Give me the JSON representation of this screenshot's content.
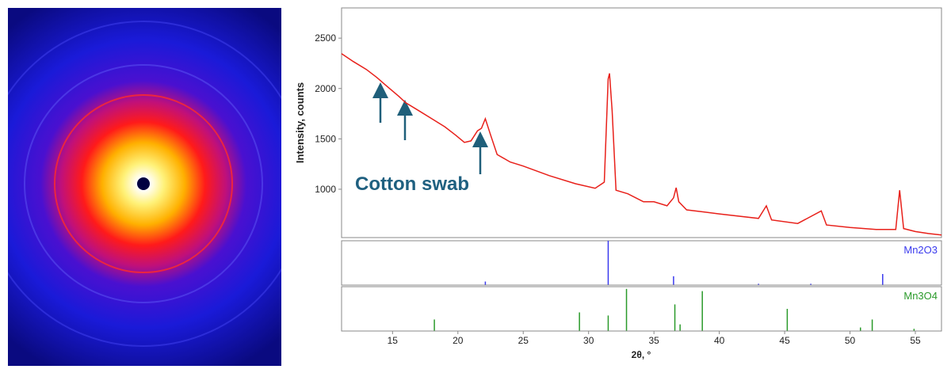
{
  "chart_data": [
    {
      "type": "line",
      "color": "#e8201a",
      "ylabel": "Intensity, counts",
      "annotation": "Cotton swab",
      "xlim": [
        11.1,
        57
      ],
      "ylim": [
        520,
        2800
      ],
      "yticks": [
        1000,
        1500,
        2000,
        2500
      ],
      "x": [
        11.1,
        12,
        13,
        13.8,
        14.5,
        15.5,
        16,
        17,
        18,
        19,
        19.8,
        20.5,
        21,
        21.5,
        21.8,
        22.1,
        22.5,
        23,
        24,
        25,
        27,
        29,
        30.5,
        31.2,
        31.5,
        31.6,
        31.8,
        32.1,
        33,
        34.2,
        35,
        36,
        36.5,
        36.7,
        36.9,
        37.5,
        40,
        43,
        43.6,
        44,
        46,
        47.8,
        48.2,
        50,
        52,
        53.5,
        53.8,
        54.1,
        55,
        56,
        57
      ],
      "values": [
        2346,
        2268,
        2189,
        2110,
        2030,
        1920,
        1860,
        1780,
        1700,
        1620,
        1540,
        1465,
        1480,
        1580,
        1605,
        1700,
        1540,
        1345,
        1270,
        1230,
        1135,
        1055,
        1010,
        1070,
        2095,
        2150,
        1780,
        990,
        955,
        875,
        875,
        835,
        915,
        1015,
        875,
        795,
        755,
        710,
        835,
        695,
        660,
        785,
        645,
        620,
        600,
        600,
        990,
        610,
        580,
        560,
        545
      ]
    },
    {
      "type": "stick",
      "name": "Mn2O3",
      "color": "#3a3aee",
      "xlim": [
        11.1,
        57
      ],
      "ylim": [
        0,
        100
      ],
      "x": [
        22.1,
        31.5,
        36.5,
        43.0,
        47.0,
        52.5
      ],
      "values": [
        8,
        100,
        20,
        3,
        3,
        25
      ]
    },
    {
      "type": "stick",
      "name": "Mn3O4",
      "color": "#2a9a2a",
      "xlabel": "2θ, °",
      "xlim": [
        11.1,
        57
      ],
      "ylim": [
        0,
        100
      ],
      "xticks": [
        15,
        20,
        25,
        30,
        35,
        40,
        45,
        50,
        55
      ],
      "x": [
        18.2,
        29.3,
        31.5,
        32.9,
        36.6,
        37.0,
        38.7,
        45.2,
        50.8,
        51.7,
        54.9
      ],
      "values": [
        26,
        42,
        35,
        95,
        60,
        15,
        90,
        50,
        8,
        26,
        5
      ]
    }
  ]
}
